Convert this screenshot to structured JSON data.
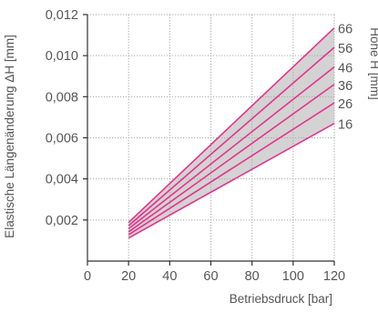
{
  "chart_data": {
    "type": "line",
    "xlabel": "Betriebsdruck [bar]",
    "ylabel": "Elastische Längenänderung ΔH [mm]",
    "legend_title": "Höhe H [mm]",
    "xlim": [
      0,
      120
    ],
    "ylim": [
      0,
      0.012
    ],
    "x_ticks": [
      0,
      20,
      40,
      60,
      80,
      100,
      120
    ],
    "x_tick_labels": [
      "0",
      "20",
      "40",
      "60",
      "80",
      "100",
      "120"
    ],
    "y_ticks": [
      0.002,
      0.004,
      0.006,
      0.008,
      0.01,
      0.012
    ],
    "y_tick_labels": [
      "0,002",
      "0,004",
      "0,006",
      "0,008",
      "0,010",
      "0,012"
    ],
    "grid": true,
    "band_between": [
      "16",
      "66"
    ],
    "colors": {
      "series": "#e8318e",
      "band": "#d3d3d3",
      "grid": "#a9a9a9",
      "axis": "#333333",
      "text": "#555555"
    },
    "series": [
      {
        "name": "66",
        "x": [
          20,
          120
        ],
        "y": [
          0.00188,
          0.01135
        ]
      },
      {
        "name": "56",
        "x": [
          20,
          120
        ],
        "y": [
          0.00172,
          0.0104
        ]
      },
      {
        "name": "46",
        "x": [
          20,
          120
        ],
        "y": [
          0.00157,
          0.00945
        ]
      },
      {
        "name": "36",
        "x": [
          20,
          120
        ],
        "y": [
          0.00142,
          0.0086
        ]
      },
      {
        "name": "26",
        "x": [
          20,
          120
        ],
        "y": [
          0.00128,
          0.0077
        ]
      },
      {
        "name": "16",
        "x": [
          20,
          120
        ],
        "y": [
          0.00112,
          0.0067
        ]
      }
    ]
  }
}
